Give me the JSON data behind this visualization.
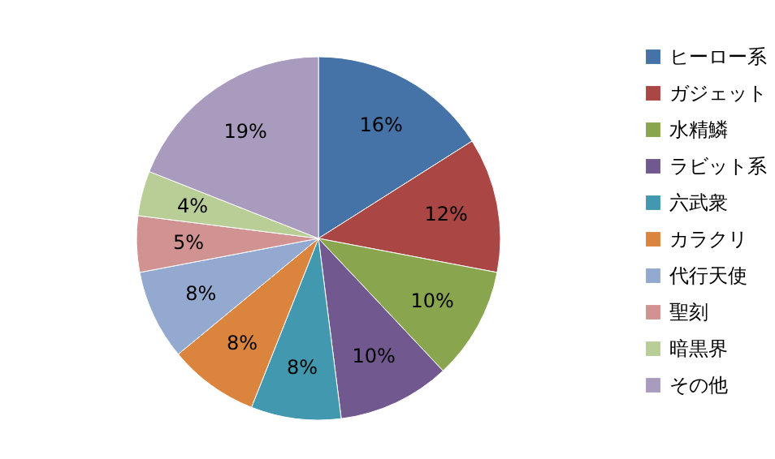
{
  "chart_data": {
    "type": "pie",
    "categories": [
      "ヒーロー系",
      "ガジェット",
      "水精鱗",
      "ラビット系",
      "六武衆",
      "カラクリ",
      "代行天使",
      "聖刻",
      "暗黒界",
      "その他"
    ],
    "values": [
      16,
      12,
      10,
      10,
      8,
      8,
      8,
      5,
      4,
      19
    ],
    "colors": [
      "#4572a7",
      "#aa4643",
      "#89a54e",
      "#71588f",
      "#4198af",
      "#db843d",
      "#93a9cf",
      "#d19392",
      "#b9cd96",
      "#a99bbd"
    ],
    "value_labels": [
      "16%",
      "12%",
      "10%",
      "10%",
      "8%",
      "8%",
      "8%",
      "5%",
      "4%",
      "19%"
    ],
    "legend": "right"
  }
}
